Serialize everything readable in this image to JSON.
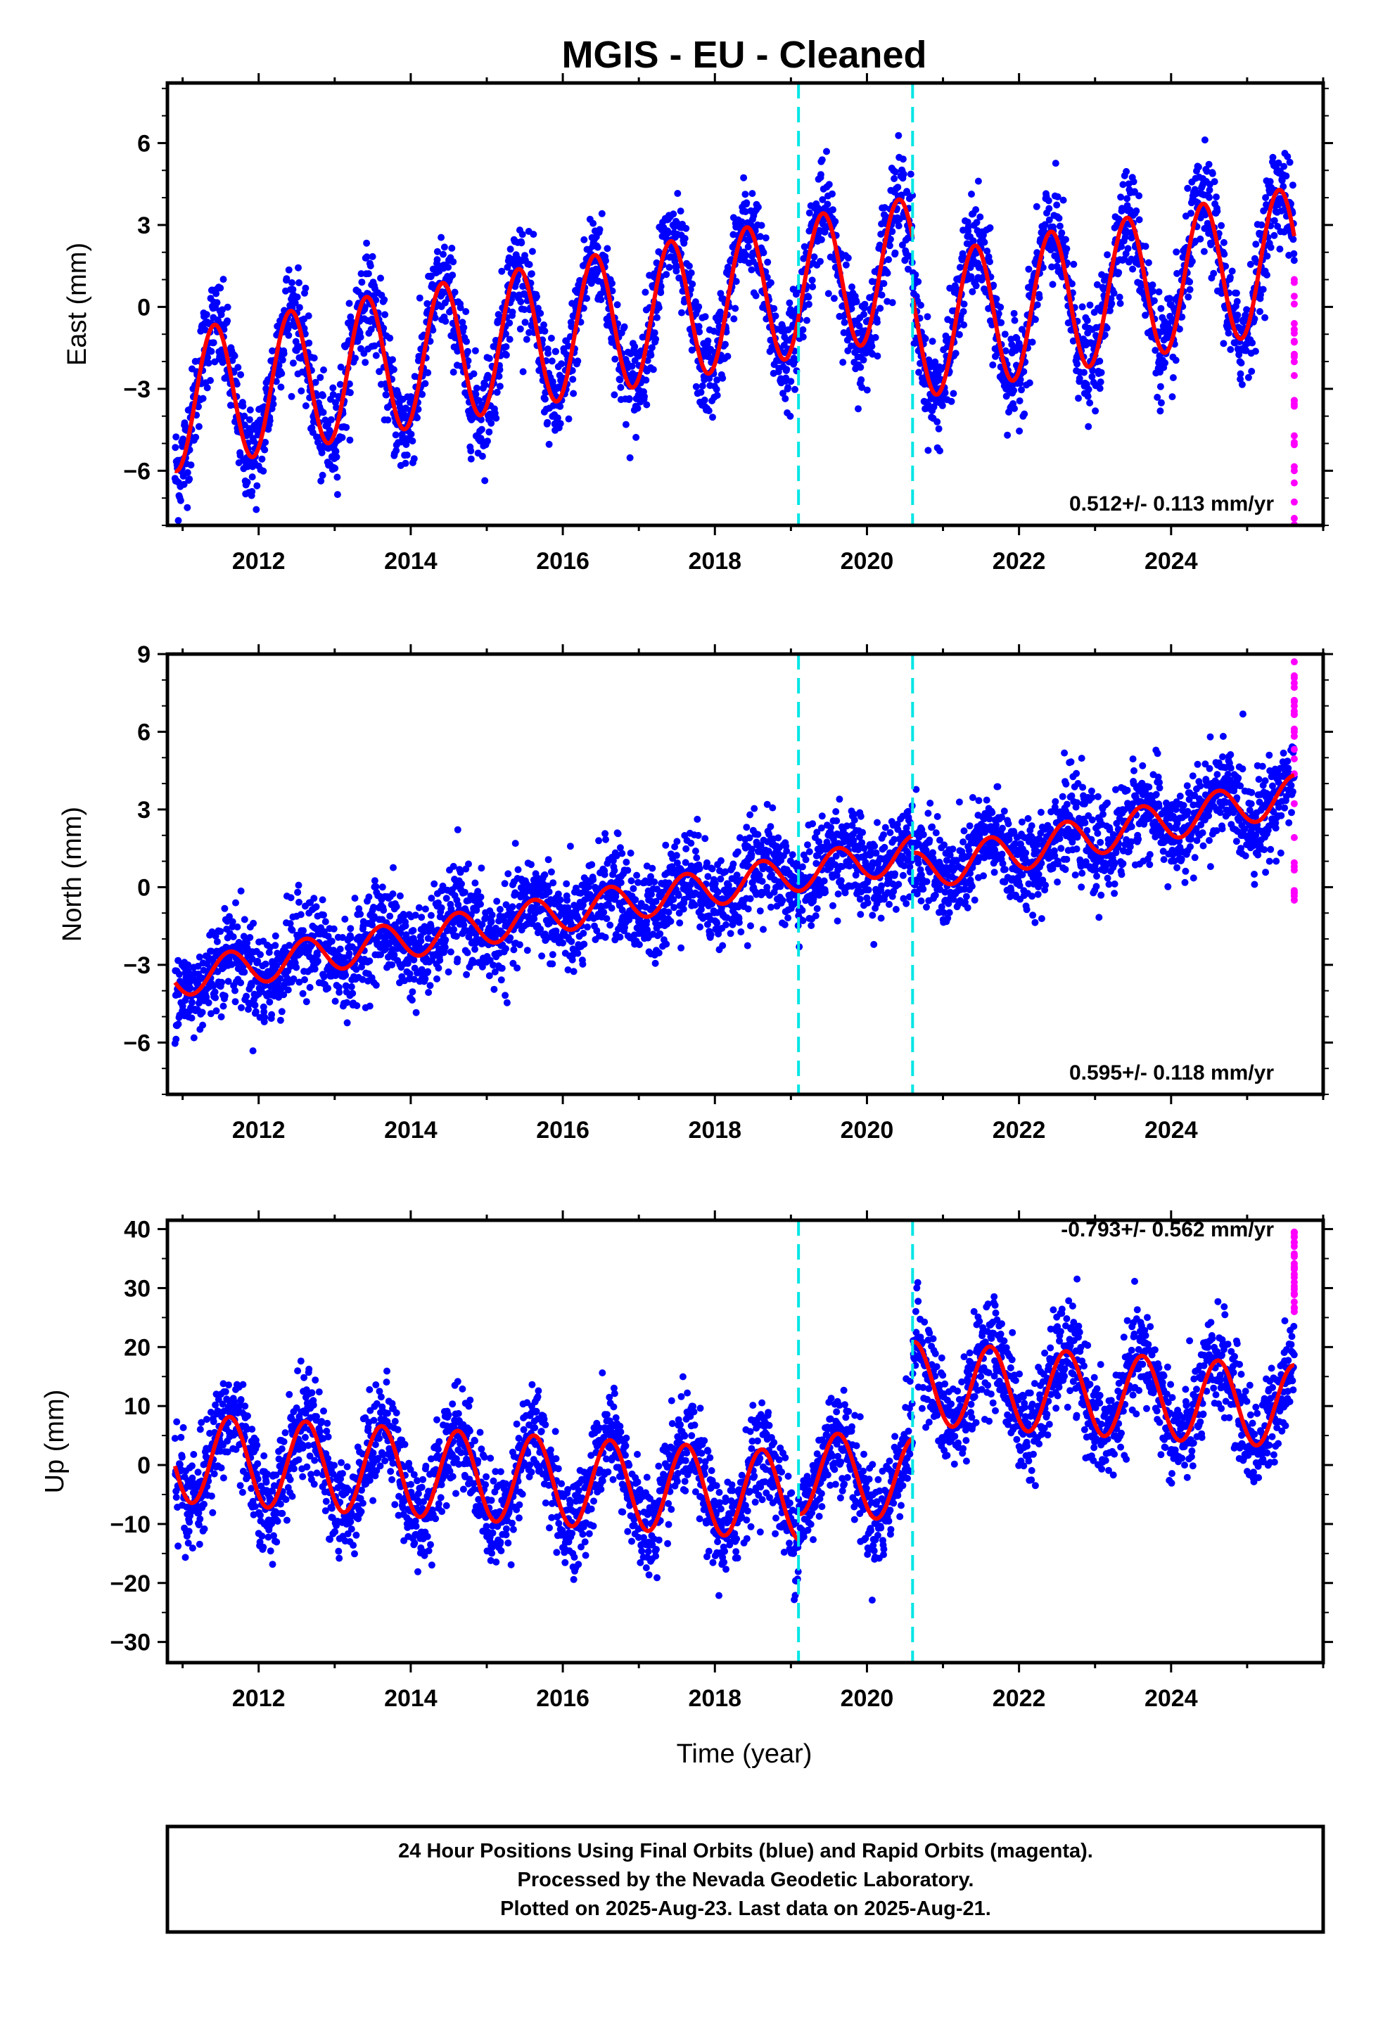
{
  "title": "MGIS  - EU - Cleaned",
  "xlabel": "Time (year)",
  "footer": {
    "line1": "24 Hour Positions Using Final Orbits (blue) and Rapid Orbits (magenta).",
    "line2": "Processed by the Nevada Geodetic Laboratory.",
    "line3": "Plotted on 2025-Aug-23. Last data on 2025-Aug-21."
  },
  "colors": {
    "final_orbits": "#0000ff",
    "rapid_orbits": "#ff00ff",
    "model": "#ff0000",
    "offsets": "#00e5e5"
  },
  "chart_data": [
    {
      "type": "scatter",
      "name": "east",
      "ylabel": "East (mm)",
      "rate_text": "0.512+/- 0.113 mm/yr",
      "xlim": [
        2010.8,
        2026.0
      ],
      "ylim": [
        -8.0,
        8.2
      ],
      "yticks": [
        -6,
        -3,
        0,
        3,
        6
      ],
      "xticks": [
        2012,
        2014,
        2016,
        2018,
        2020,
        2022,
        2024
      ],
      "offset_epochs": [
        2019.1,
        2020.6
      ],
      "start_year": 2010.9,
      "end_year": 2025.62,
      "model": {
        "segments": [
          {
            "from": 2010.9,
            "to": 2020.6,
            "ref_year": 2018.0,
            "ref_value": 0.15,
            "slope": 0.51,
            "amplitude": 2.55,
            "phase_peak_year": 0.42
          },
          {
            "from": 2020.6,
            "to": 2025.62,
            "ref_year": 2023.0,
            "ref_value": 0.45,
            "slope": 0.51,
            "amplitude": 2.6,
            "phase_peak_year": 0.42
          }
        ],
        "noise_sigma": 0.9
      },
      "rapid": {
        "year": 2025.62,
        "min": -8.0,
        "max": 1.0
      }
    },
    {
      "type": "scatter",
      "name": "north",
      "ylabel": "North (mm)",
      "rate_text": "0.595+/- 0.118 mm/yr",
      "xlim": [
        2010.8,
        2026.0
      ],
      "ylim": [
        -8.0,
        9.0
      ],
      "yticks": [
        -6,
        -3,
        0,
        3,
        6,
        9
      ],
      "xticks": [
        2012,
        2014,
        2016,
        2018,
        2020,
        2022,
        2024
      ],
      "offset_epochs": [
        2019.1,
        2020.6
      ],
      "start_year": 2010.9,
      "end_year": 2025.62,
      "model": {
        "segments": [
          {
            "from": 2010.9,
            "to": 2020.6,
            "ref_year": 2018.0,
            "ref_value": 0.0,
            "slope": 0.5,
            "amplitude": 0.7,
            "phase_peak_year": 0.62
          },
          {
            "from": 2020.6,
            "to": 2025.62,
            "ref_year": 2023.0,
            "ref_value": 2.0,
            "slope": 0.6,
            "amplitude": 0.75,
            "phase_peak_year": 0.62
          }
        ],
        "noise_sigma": 0.9
      },
      "rapid": {
        "year": 2025.62,
        "min": -0.5,
        "max": 8.7
      }
    },
    {
      "type": "scatter",
      "name": "up",
      "ylabel": "Up (mm)",
      "rate_text": "-0.793+/- 0.562 mm/yr",
      "xlim": [
        2010.8,
        2026.0
      ],
      "ylim": [
        -33.5,
        41.5
      ],
      "yticks": [
        -30,
        -20,
        -10,
        0,
        10,
        20,
        30,
        40
      ],
      "xticks": [
        2012,
        2014,
        2016,
        2018,
        2020,
        2022,
        2024
      ],
      "offset_epochs": [
        2019.1,
        2020.6
      ],
      "start_year": 2010.9,
      "end_year": 2025.62,
      "model": {
        "segments": [
          {
            "from": 2010.9,
            "to": 2019.1,
            "ref_year": 2015.0,
            "ref_value": -2.0,
            "slope": -0.79,
            "amplitude": 7.5,
            "phase_peak_year": 0.62
          },
          {
            "from": 2019.1,
            "to": 2020.6,
            "ref_year": 2020.0,
            "ref_value": -2.0,
            "slope": -0.79,
            "amplitude": 7.0,
            "phase_peak_year": 0.62
          },
          {
            "from": 2020.6,
            "to": 2025.62,
            "ref_year": 2023.0,
            "ref_value": 12.0,
            "slope": -0.79,
            "amplitude": 7.0,
            "phase_peak_year": 0.62
          }
        ],
        "noise_sigma": 4.2
      },
      "rapid": {
        "year": 2025.62,
        "min": 26.0,
        "max": 39.5
      }
    }
  ]
}
